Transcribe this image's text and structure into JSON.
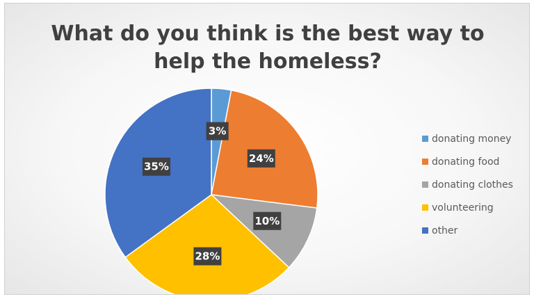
{
  "chart_data": {
    "type": "pie",
    "title": "What do you think is the best way to\nhelp the homeless?",
    "categories": [
      "donating money",
      "donating food",
      "donating clothes",
      "volunteering",
      "other"
    ],
    "values": [
      3,
      24,
      10,
      28,
      35
    ],
    "data_labels": [
      "3%",
      "24%",
      "10%",
      "28%",
      "35%"
    ],
    "colors": [
      "#5B9BD5",
      "#ED7D31",
      "#A5A5A5",
      "#FFC000",
      "#4472C4"
    ],
    "legend_position": "right",
    "start_angle": "top, clockwise"
  }
}
